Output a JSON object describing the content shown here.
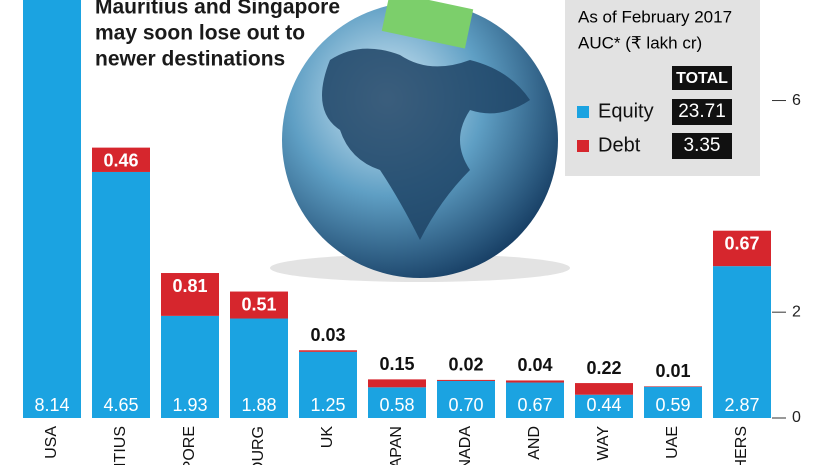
{
  "chart_data": {
    "type": "stacked_bar",
    "title_lines": [
      "Mauritius and Singapore",
      "may soon lose out to",
      "newer destinations"
    ],
    "categories": [
      "USA",
      "ITIUS",
      "PORE",
      "OURG",
      "UK",
      "APAN",
      "NADA",
      "AND",
      "WAY",
      "UAE",
      "HERS"
    ],
    "series": [
      {
        "name": "Equity",
        "color": "#1ba3e1",
        "values": [
          8.14,
          4.65,
          1.93,
          1.88,
          1.25,
          0.58,
          0.7,
          0.67,
          0.44,
          0.59,
          2.87
        ],
        "value_labels": [
          "8.14",
          "4.65",
          "1.93",
          "1.88",
          "1.25",
          "0.58",
          "0.70",
          "0.67",
          "0.44",
          "0.59",
          "2.87"
        ]
      },
      {
        "name": "Debt",
        "color": "#d6262d",
        "values": [
          null,
          0.46,
          0.81,
          0.51,
          0.03,
          0.15,
          0.02,
          0.04,
          0.22,
          0.01,
          0.67
        ],
        "value_labels": [
          null,
          "0.46",
          "0.81",
          "0.51",
          "0.03",
          "0.15",
          "0.02",
          "0.04",
          "0.22",
          "0.01",
          "0.67"
        ]
      }
    ],
    "ylim": [
      0,
      7.9
    ],
    "yticks": [
      0,
      2,
      6
    ],
    "legend": {
      "lines": [
        "As of February 2017",
        "AUC* (₹ lakh cr)"
      ],
      "heading": "TOTAL",
      "totals": [
        "23.71",
        "3.35"
      ]
    }
  }
}
